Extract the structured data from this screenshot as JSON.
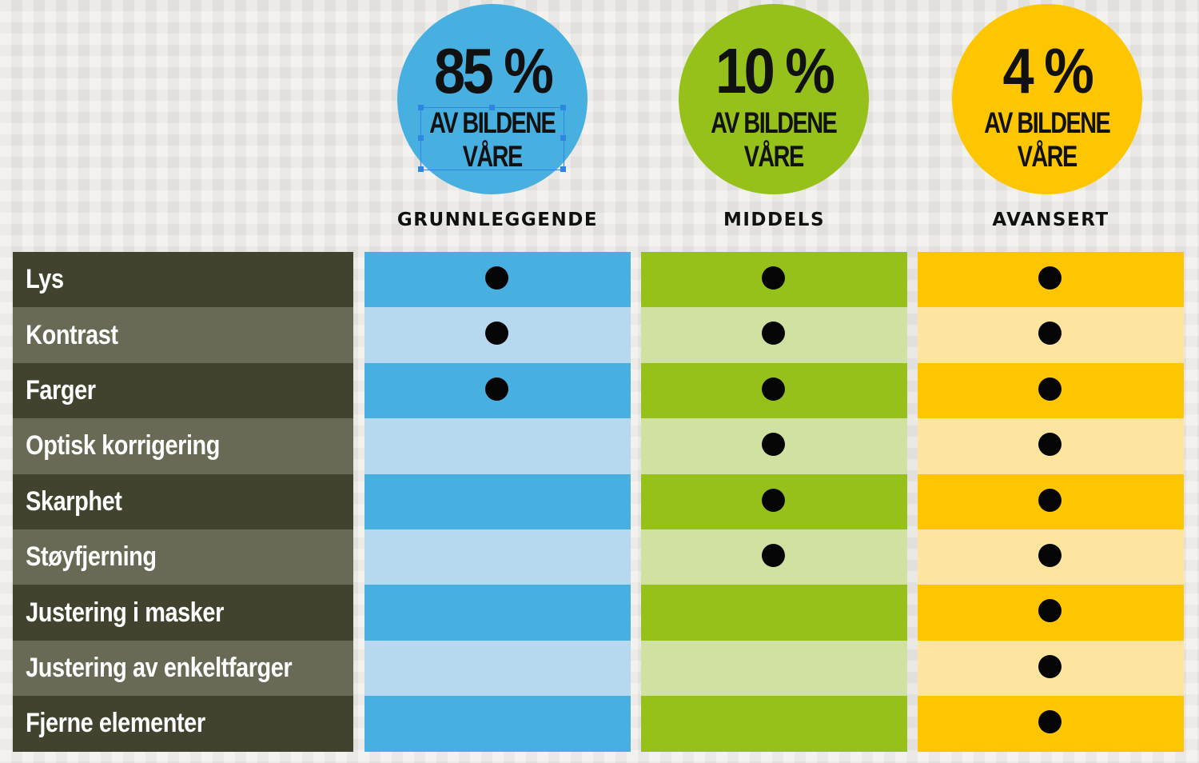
{
  "colors": {
    "blue": "#48b0e0",
    "blue_light": "#b6d9ef",
    "green": "#95c11a",
    "green_light": "#d0e1a1",
    "yellow": "#fdc600",
    "yellow_light": "#fde49f",
    "label_dark": "#41432e",
    "label_light": "#696a55"
  },
  "columns": [
    {
      "percent": "85 %",
      "line1": "AV BILDENE",
      "line2": "VÅRE",
      "title": "GRUNNLEGGENDE",
      "color": "#48b0e0"
    },
    {
      "percent": "10 %",
      "line1": "AV BILDENE",
      "line2": "VÅRE",
      "title": "MIDDELS",
      "color": "#95c11a"
    },
    {
      "percent": "4 %",
      "line1": "AV BILDENE",
      "line2": "VÅRE",
      "title": "AVANSERT",
      "color": "#fdc600"
    }
  ],
  "rows": [
    {
      "label": "Lys",
      "marks": [
        true,
        true,
        true
      ]
    },
    {
      "label": "Kontrast",
      "marks": [
        true,
        true,
        true
      ]
    },
    {
      "label": "Farger",
      "marks": [
        true,
        true,
        true
      ]
    },
    {
      "label": "Optisk korrigering",
      "marks": [
        false,
        true,
        true
      ]
    },
    {
      "label": "Skarphet",
      "marks": [
        false,
        true,
        true
      ]
    },
    {
      "label": "Støyfjerning",
      "marks": [
        false,
        true,
        true
      ]
    },
    {
      "label": "Justering i masker",
      "marks": [
        false,
        false,
        true
      ]
    },
    {
      "label": "Justering av enkeltfarger",
      "marks": [
        false,
        false,
        true
      ]
    },
    {
      "label": "Fjerne elementer",
      "marks": [
        false,
        false,
        true
      ]
    }
  ]
}
